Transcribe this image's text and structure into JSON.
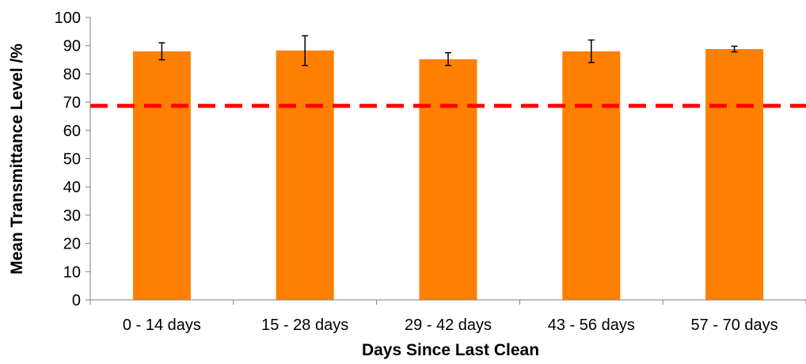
{
  "chart_data": {
    "type": "bar",
    "title": "",
    "xlabel": "Days Since Last Clean",
    "ylabel": "Mean Transmittance Level /%",
    "categories": [
      "0 - 14 days",
      "15 - 28 days",
      "29 - 42 days",
      "43 - 56 days",
      "57 - 70 days"
    ],
    "values": [
      88,
      88.3,
      85.2,
      88,
      88.8
    ],
    "errors": [
      {
        "low": 85,
        "high": 91
      },
      {
        "low": 83,
        "high": 93.5
      },
      {
        "low": 83,
        "high": 87.5
      },
      {
        "low": 84,
        "high": 92
      },
      {
        "low": 87.8,
        "high": 89.8
      }
    ],
    "reference_line": {
      "value": 68.7,
      "style": "dashed"
    },
    "ylim": [
      0,
      100
    ],
    "yticks": [
      "0",
      "10",
      "20",
      "30",
      "40",
      "50",
      "60",
      "70",
      "80",
      "90",
      "100"
    ],
    "grid": false,
    "legend": "none",
    "colors": {
      "bar": "#ff8000",
      "reference_line": "#ff0000",
      "axis": "#808080",
      "error_bar": "#000000"
    }
  }
}
